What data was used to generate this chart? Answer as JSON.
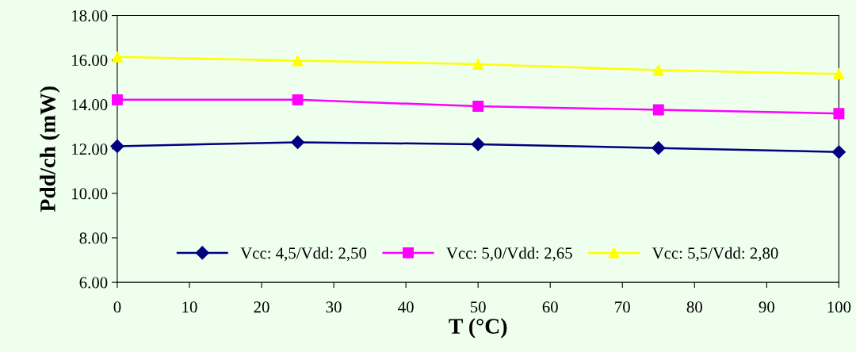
{
  "chart_data": {
    "type": "line",
    "xlabel": "T (°C)",
    "ylabel": "Pdd/ch (mW)",
    "x": [
      0,
      25,
      50,
      75,
      100
    ],
    "series": [
      {
        "name": "Vcc: 4,5/Vdd: 2,50",
        "color": "#000080",
        "marker": "diamond",
        "values": [
          12.12,
          12.3,
          12.21,
          12.04,
          11.86
        ]
      },
      {
        "name": "Vcc: 5,0/Vdd: 2,65",
        "color": "#ff00ff",
        "marker": "square",
        "values": [
          14.21,
          14.21,
          13.92,
          13.76,
          13.59
        ]
      },
      {
        "name": "Vcc: 5,5/Vdd: 2,80",
        "color": "#ffff00",
        "marker": "triangle",
        "values": [
          16.14,
          15.97,
          15.81,
          15.54,
          15.37
        ]
      }
    ],
    "xlim": [
      0,
      100
    ],
    "xticks": [
      0,
      10,
      20,
      30,
      40,
      50,
      60,
      70,
      80,
      90,
      100
    ],
    "ylim": [
      6,
      18
    ],
    "yticks": [
      {
        "value": 6,
        "label": "6.00"
      },
      {
        "value": 8,
        "label": "8.00"
      },
      {
        "value": 10,
        "label": "10.00"
      },
      {
        "value": 12,
        "label": "12.00"
      },
      {
        "value": 14,
        "label": "14.00"
      },
      {
        "value": 16,
        "label": "16.00"
      },
      {
        "value": 18,
        "label": "18.00"
      }
    ],
    "grid": false,
    "legend": "bottom",
    "line_style": "solid"
  }
}
